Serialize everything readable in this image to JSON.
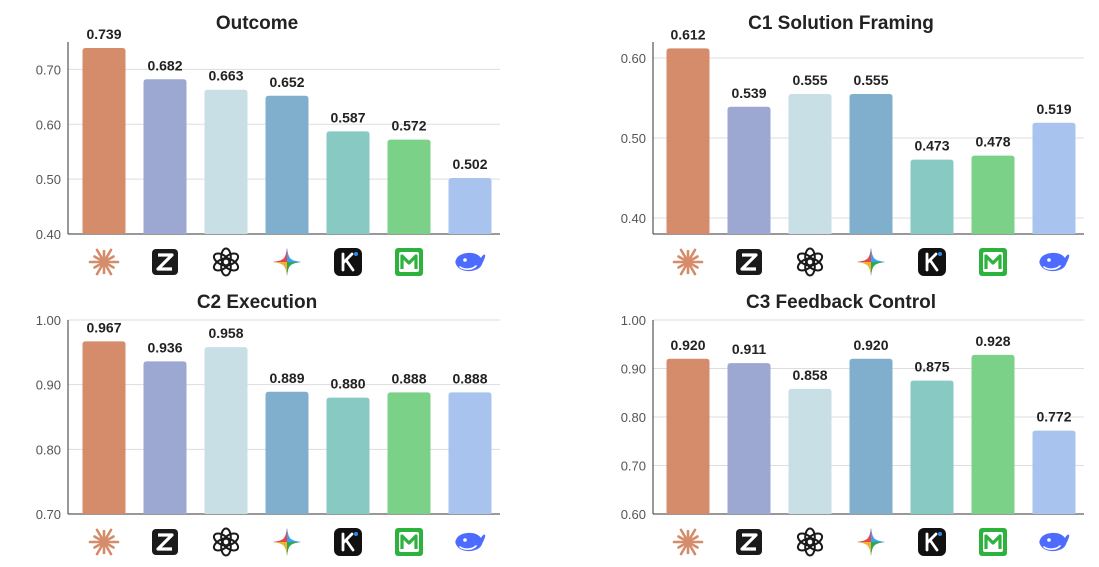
{
  "colors": {
    "claude": "#D48C6A",
    "zhipu": "#9CA8D2",
    "openai": "#C8DFE6",
    "gemini": "#80AFCE",
    "kimi": "#89C9C3",
    "minimax": "#7BD187",
    "deepseek": "#A8C3EE"
  },
  "models": [
    {
      "key": "claude",
      "icon": "claude-starburst-icon"
    },
    {
      "key": "zhipu",
      "icon": "zhipu-z-icon"
    },
    {
      "key": "openai",
      "icon": "openai-knot-icon"
    },
    {
      "key": "gemini",
      "icon": "gemini-sparkle-icon"
    },
    {
      "key": "kimi",
      "icon": "kimi-k-icon"
    },
    {
      "key": "minimax",
      "icon": "minimax-m-icon"
    },
    {
      "key": "deepseek",
      "icon": "deepseek-whale-icon"
    }
  ],
  "chart_data": [
    {
      "type": "bar",
      "title": "Outcome",
      "values": [
        0.739,
        0.682,
        0.663,
        0.652,
        0.587,
        0.572,
        0.502
      ],
      "value_labels": [
        "0.739",
        "0.682",
        "0.663",
        "0.652",
        "0.587",
        "0.572",
        "0.502"
      ],
      "ylim": [
        0.4,
        0.75
      ],
      "yticks": [
        0.4,
        0.5,
        0.6,
        0.7
      ],
      "ytick_labels": [
        "0.40",
        "0.50",
        "0.60",
        "0.70"
      ],
      "grid": true
    },
    {
      "type": "bar",
      "title": "C1 Solution Framing",
      "values": [
        0.612,
        0.539,
        0.555,
        0.555,
        0.473,
        0.478,
        0.519
      ],
      "value_labels": [
        "0.612",
        "0.539",
        "0.555",
        "0.555",
        "0.473",
        "0.478",
        "0.519"
      ],
      "ylim": [
        0.38,
        0.62
      ],
      "yticks": [
        0.4,
        0.5,
        0.6
      ],
      "ytick_labels": [
        "0.40",
        "0.50",
        "0.60"
      ],
      "grid": true
    },
    {
      "type": "bar",
      "title": "C2 Execution",
      "values": [
        0.967,
        0.936,
        0.958,
        0.889,
        0.88,
        0.888,
        0.888
      ],
      "value_labels": [
        "0.967",
        "0.936",
        "0.958",
        "0.889",
        "0.880",
        "0.888",
        "0.888"
      ],
      "ylim": [
        0.7,
        1.0
      ],
      "yticks": [
        0.7,
        0.8,
        0.9,
        1.0
      ],
      "ytick_labels": [
        "0.70",
        "0.80",
        "0.90",
        "1.00"
      ],
      "grid": true
    },
    {
      "type": "bar",
      "title": "C3 Feedback Control",
      "values": [
        0.92,
        0.911,
        0.858,
        0.92,
        0.875,
        0.928,
        0.772
      ],
      "value_labels": [
        "0.920",
        "0.911",
        "0.858",
        "0.920",
        "0.875",
        "0.928",
        "0.772"
      ],
      "ylim": [
        0.6,
        1.0
      ],
      "yticks": [
        0.6,
        0.7,
        0.8,
        0.9,
        1.0
      ],
      "ytick_labels": [
        "0.60",
        "0.70",
        "0.80",
        "0.90",
        "1.00"
      ],
      "grid": true
    }
  ]
}
